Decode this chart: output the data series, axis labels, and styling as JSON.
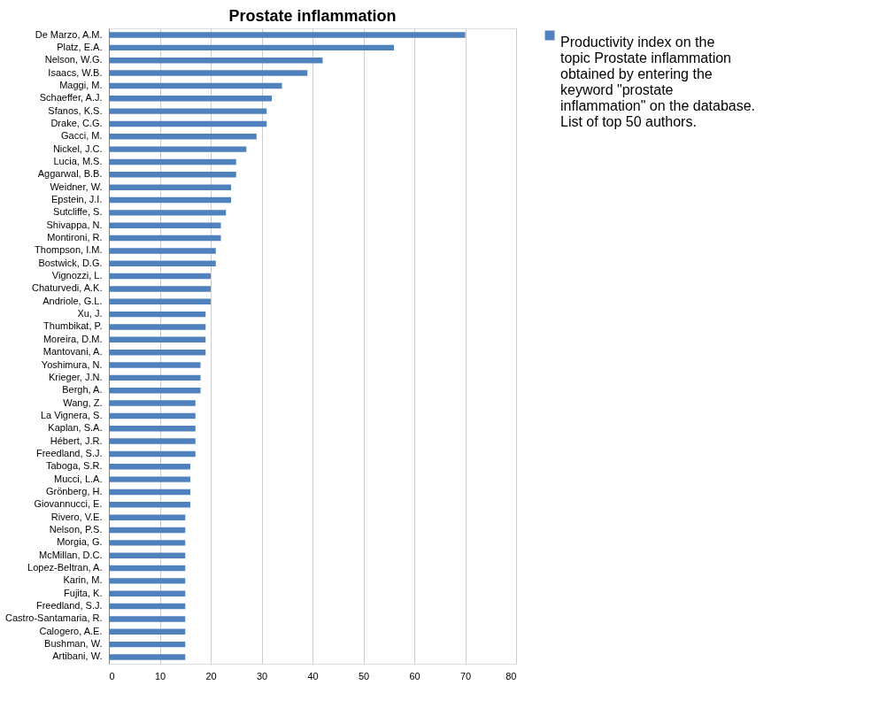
{
  "chart_data": {
    "type": "bar",
    "orientation": "horizontal",
    "title": "Prostate inflammation",
    "categories": [
      "De Marzo, A.M.",
      "Platz, E.A.",
      "Nelson, W.G.",
      "Isaacs, W.B.",
      "Maggi, M.",
      "Schaeffer, A.J.",
      "Sfanos, K.S.",
      "Drake, C.G.",
      "Gacci, M.",
      "Nickel, J.C.",
      "Lucia, M.S.",
      "Aggarwal, B.B.",
      "Weidner, W.",
      "Epstein, J.I.",
      "Sutcliffe, S.",
      "Shivappa, N.",
      "Montironi, R.",
      "Thompson, I.M.",
      "Bostwick, D.G.",
      "Vignozzi, L.",
      "Chaturvedi, A.K.",
      "Andriole, G.L.",
      "Xu, J.",
      "Thumbikat, P.",
      "Moreira, D.M.",
      "Mantovani, A.",
      "Yoshimura, N.",
      "Krieger, J.N.",
      "Bergh, A.",
      "Wang, Z.",
      "La Vignera, S.",
      "Kaplan, S.A.",
      "Hébert, J.R.",
      "Freedland, S.J.",
      "Taboga, S.R.",
      "Mucci, L.A.",
      "Grönberg, H.",
      "Giovannucci, E.",
      "Rivero, V.E.",
      "Nelson, P.S.",
      "Morgia, G.",
      "McMillan, D.C.",
      "Lopez-Beltran, A.",
      "Karin, M.",
      "Fujita, K.",
      "Freedland, S.J.",
      "Castro-Santamaria, R.",
      "Calogero, A.E.",
      "Bushman, W.",
      "Artibani, W."
    ],
    "series": [
      {
        "name": "Productivity index on the topic Prostate inflammation obtained by entering the keyword \"prostate inflammation\" on the database. List of top 50 authors.",
        "color": "#4f81bd",
        "values": [
          70,
          56,
          42,
          39,
          34,
          32,
          31,
          31,
          29,
          27,
          25,
          25,
          24,
          24,
          23,
          22,
          22,
          21,
          21,
          20,
          20,
          20,
          19,
          19,
          19,
          19,
          18,
          18,
          18,
          17,
          17,
          17,
          17,
          17,
          16,
          16,
          16,
          16,
          15,
          15,
          15,
          15,
          15,
          15,
          15,
          15,
          15,
          15,
          15,
          15
        ]
      }
    ],
    "xlim": [
      0,
      80
    ],
    "xticks": [
      0,
      10,
      20,
      30,
      40,
      50,
      60,
      70,
      80
    ],
    "grid": "x",
    "legend": "right"
  }
}
